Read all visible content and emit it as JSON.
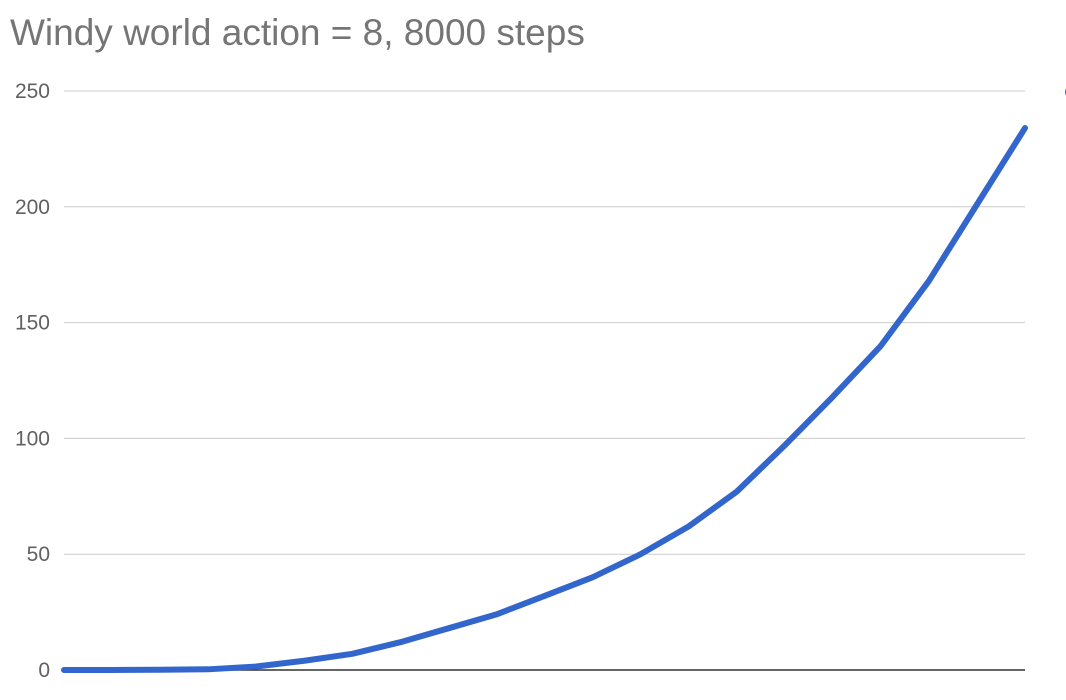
{
  "chart_data": {
    "type": "line",
    "title": "Windy world action = 8, 8000 steps",
    "xlabel": "",
    "ylabel": "",
    "ylim": [
      0,
      250
    ],
    "yticks": [
      0,
      50,
      100,
      150,
      200,
      250
    ],
    "grid": true,
    "legend": "right",
    "x": [
      0,
      10,
      20,
      30,
      40,
      50,
      60,
      70,
      80,
      90,
      100,
      110,
      120,
      130,
      140,
      150,
      160,
      170,
      180,
      190,
      200
    ],
    "series": [
      {
        "color": "#3366cc",
        "values": [
          0,
          0,
          0.1,
          0.3,
          1.5,
          4,
          7,
          12,
          18,
          24,
          32,
          40,
          50,
          62,
          77,
          97,
          118,
          140,
          168,
          201,
          234
        ]
      }
    ]
  }
}
